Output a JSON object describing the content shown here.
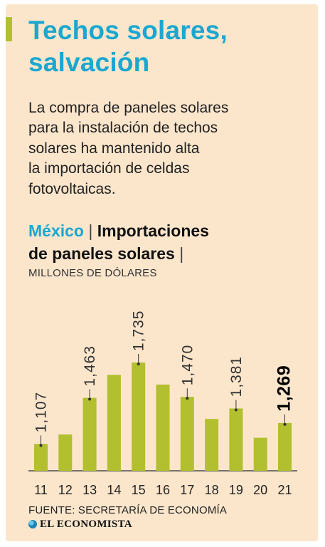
{
  "header": {
    "title_lines": [
      "Techos solares,",
      "salvación"
    ],
    "subtitle_lines": [
      "La compra de paneles solares",
      "para la instalación de techos",
      "solares ha mantenido alta",
      "la importación de celdas",
      "fotovoltaicas."
    ]
  },
  "chart_head": {
    "country": "México",
    "separator": "|",
    "title_line1": "Importaciones",
    "title_line2": "de paneles solares",
    "units": "MILLONES DE DÓLARES"
  },
  "colors": {
    "background": "#fbe6cc",
    "bar": "#b2bf2e",
    "title": "#1ba7cf"
  },
  "chart_data": {
    "type": "bar",
    "categories": [
      "11",
      "12",
      "13",
      "14",
      "15",
      "16",
      "17",
      "18",
      "19",
      "20",
      "21"
    ],
    "values": [
      1107,
      1180,
      1463,
      1640,
      1735,
      1565,
      1470,
      1300,
      1381,
      1155,
      1269
    ],
    "data_labels": [
      {
        "index": 0,
        "text": "1,107"
      },
      {
        "index": 2,
        "text": "1,463"
      },
      {
        "index": 4,
        "text": "1,735"
      },
      {
        "index": 6,
        "text": "1,470"
      },
      {
        "index": 8,
        "text": "1,381"
      },
      {
        "index": 10,
        "text": "1,269",
        "highlight": true
      }
    ],
    "title": "Importaciones de paneles solares",
    "xlabel": "",
    "ylabel": "MILLONES DE DÓLARES",
    "ylim": [
      900,
      1735
    ],
    "grid": false,
    "legend": "none"
  },
  "footer": {
    "source": "FUENTE: SECRETARÍA DE ECONOMÍA",
    "brand": "EL ECONOMISTA"
  }
}
